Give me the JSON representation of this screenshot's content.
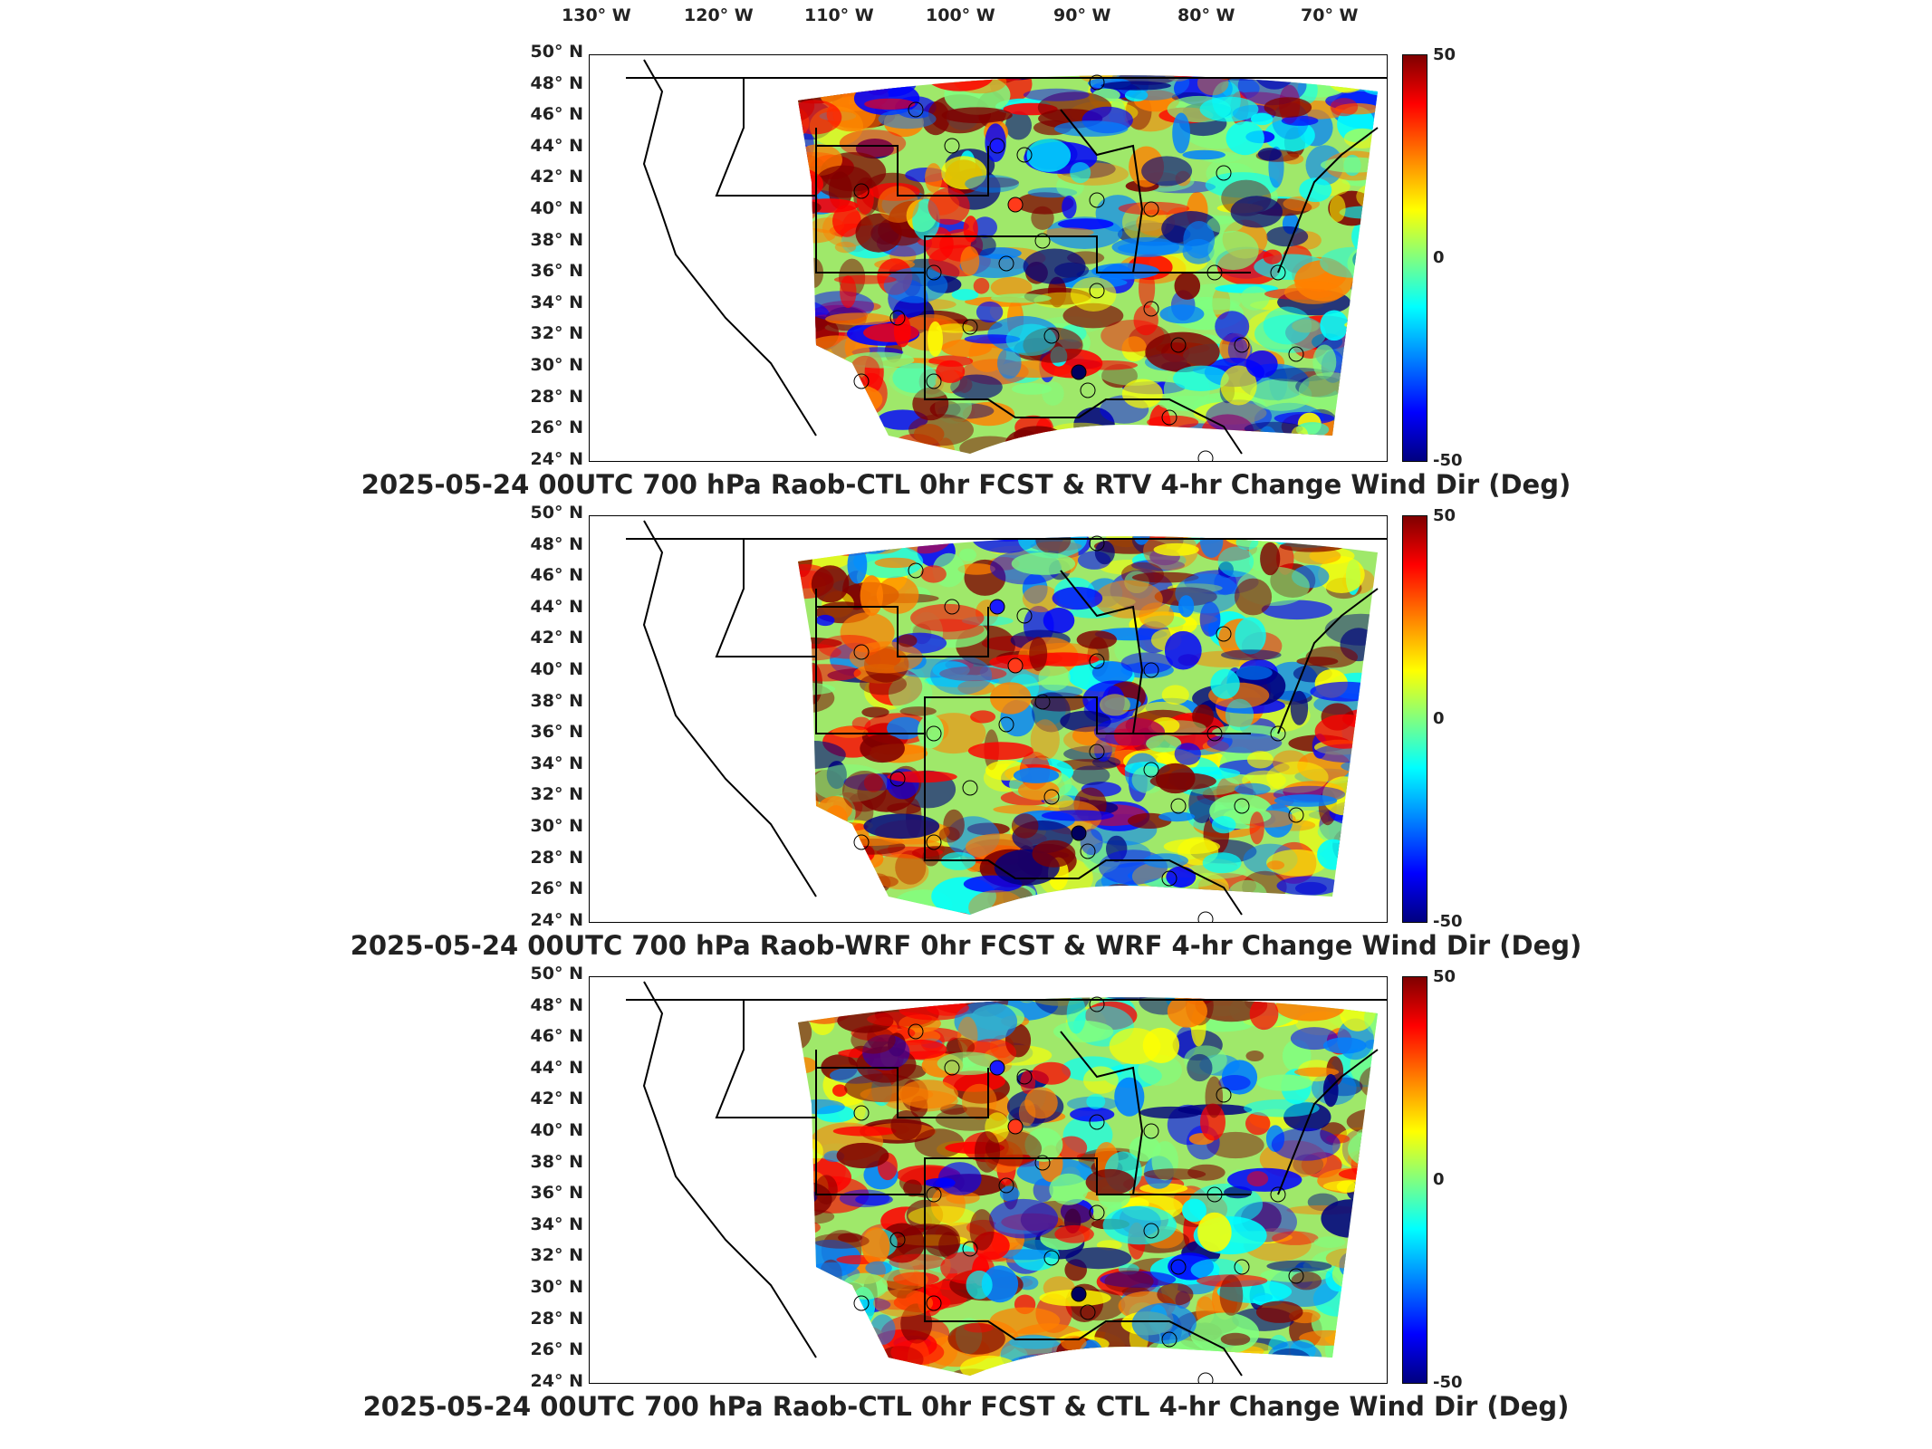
{
  "longitude_labels": [
    "130° W",
    "120° W",
    "110° W",
    "100° W",
    "90° W",
    "80° W",
    "70° W"
  ],
  "latitude_labels": [
    "50° N",
    "48° N",
    "46° N",
    "44° N",
    "42° N",
    "40° N",
    "38° N",
    "36° N",
    "34° N",
    "32° N",
    "30° N",
    "28° N",
    "26° N",
    "24° N"
  ],
  "colorbar": {
    "max": "50",
    "mid": "0",
    "min": "-50"
  },
  "colors": {
    "positive": "#cc0000",
    "neutral": "#7fff7f",
    "negative": "#0000aa"
  },
  "panels": [
    {
      "title": "2025-05-24 00UTC 700 hPa Raob-CTL 0hr FCST & RTV 4-hr Change Wind Dir (Deg)"
    },
    {
      "title": "2025-05-24 00UTC 700 hPa Raob-WRF 0hr FCST & WRF 4-hr Change Wind Dir (Deg)"
    },
    {
      "title": "2025-05-24 00UTC 700 hPa Raob-CTL 0hr FCST & CTL 4-hr Change Wind Dir (Deg)"
    }
  ]
}
